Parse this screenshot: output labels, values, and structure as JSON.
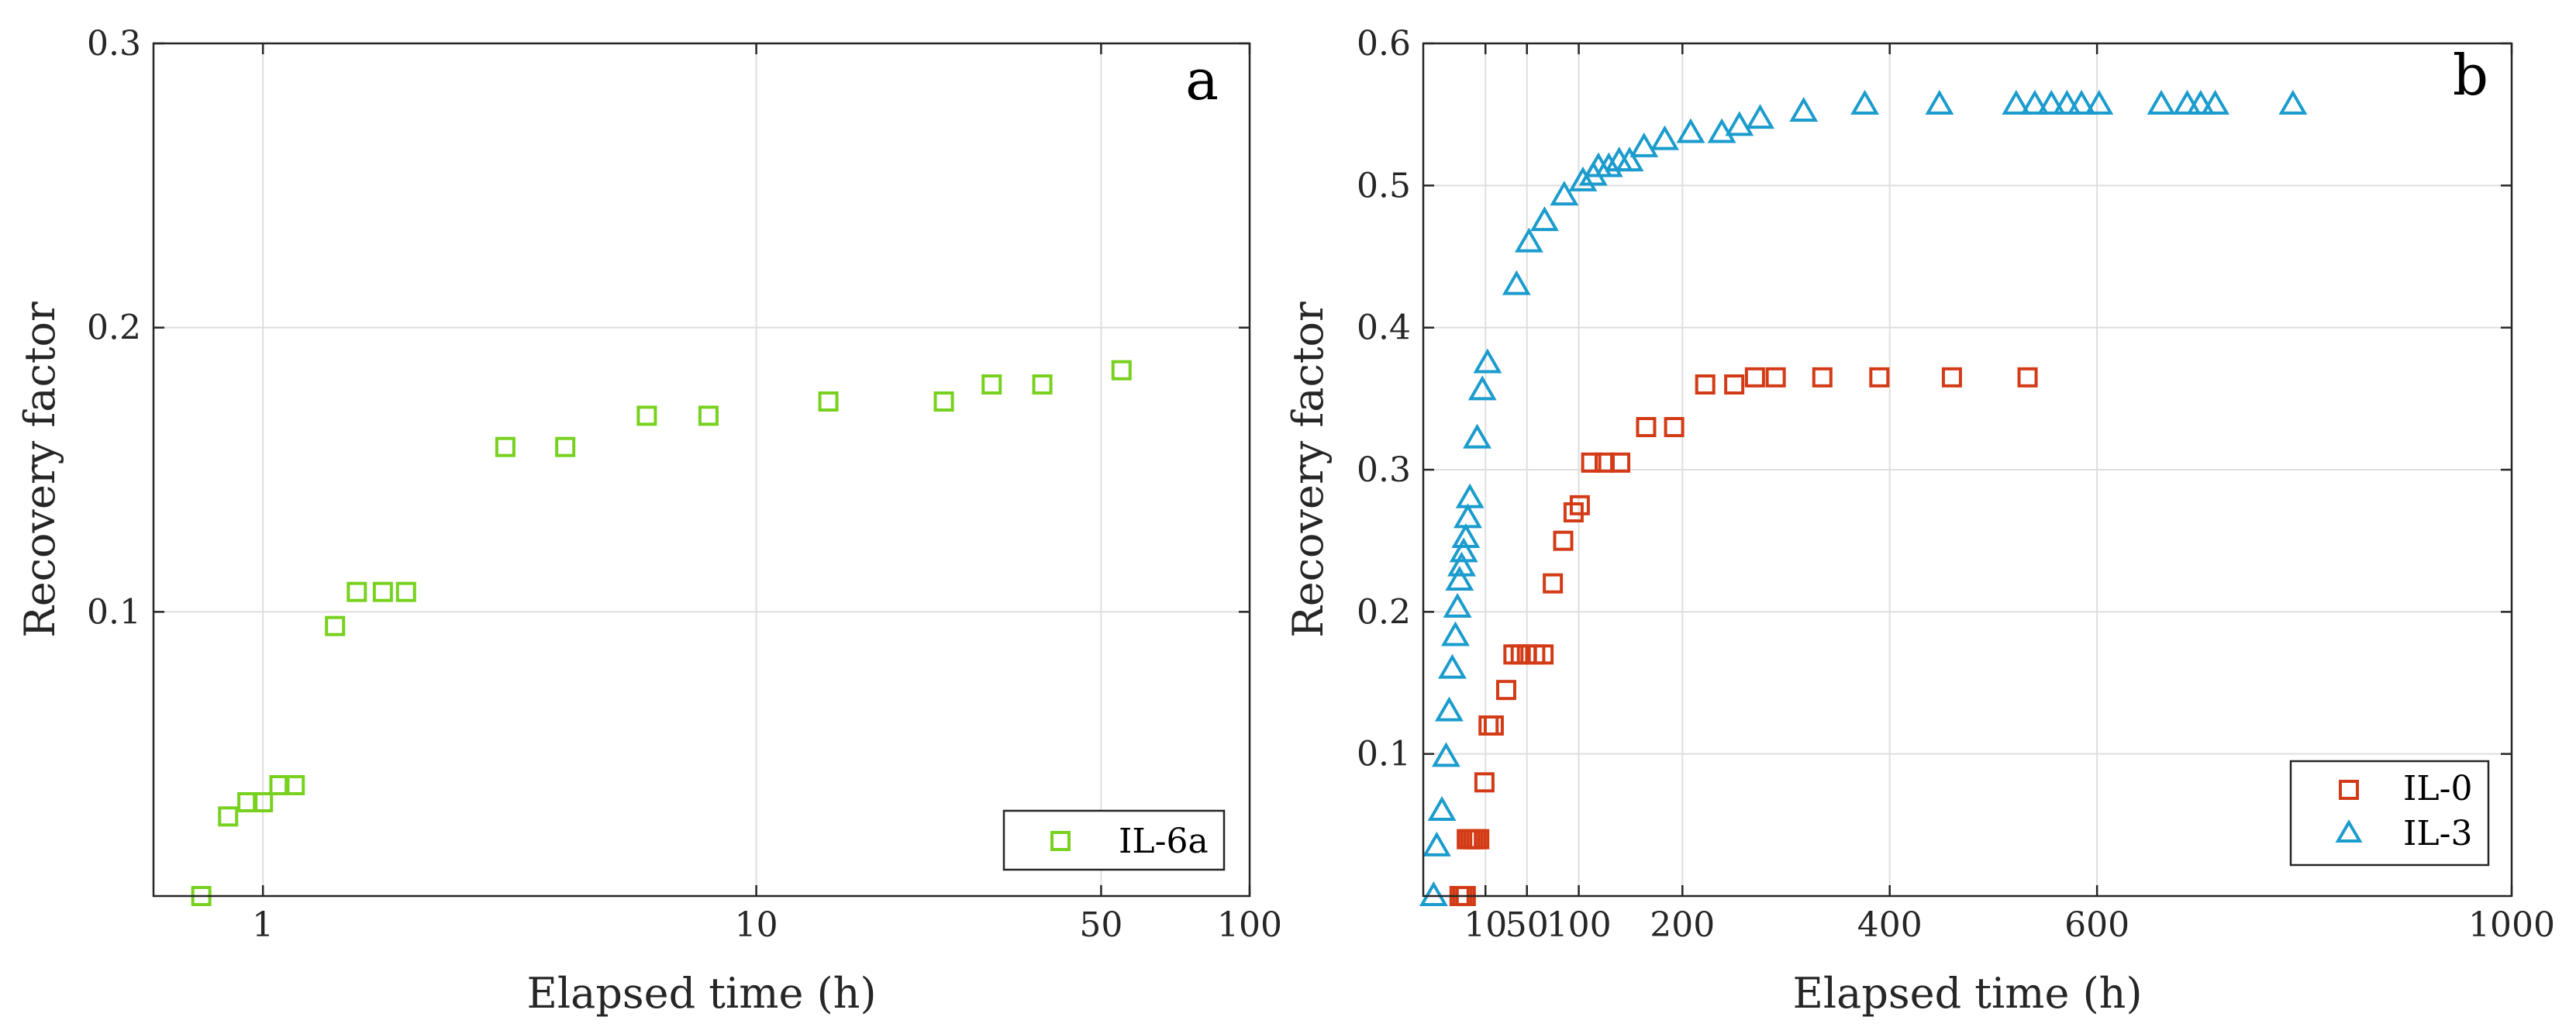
{
  "chart_data": [
    {
      "type": "scatter",
      "panel_label": "a",
      "xlabel": "Elapsed time (h)",
      "ylabel": "Recovery factor",
      "xscale": "log",
      "xlim": [
        0.6,
        100
      ],
      "ylim": [
        0,
        0.3
      ],
      "xticks": [
        1,
        10,
        50,
        100
      ],
      "xtick_labels": [
        "1",
        "10",
        "50",
        "100"
      ],
      "yticks": [
        0.1,
        0.2,
        0.3
      ],
      "ytick_labels": [
        "0.1",
        "0.2",
        "0.3"
      ],
      "grid": true,
      "legend_position": "bottom-right",
      "series": [
        {
          "name": "IL-6a",
          "marker": "square",
          "color": "#77d11e",
          "points": [
            [
              0.75,
              0.0
            ],
            [
              0.85,
              0.028
            ],
            [
              0.93,
              0.033
            ],
            [
              1.0,
              0.033
            ],
            [
              1.08,
              0.039
            ],
            [
              1.16,
              0.039
            ],
            [
              1.4,
              0.095
            ],
            [
              1.55,
              0.107
            ],
            [
              1.75,
              0.107
            ],
            [
              1.95,
              0.107
            ],
            [
              3.1,
              0.158
            ],
            [
              4.1,
              0.158
            ],
            [
              6.0,
              0.169
            ],
            [
              8.0,
              0.169
            ],
            [
              14.0,
              0.174
            ],
            [
              24.0,
              0.174
            ],
            [
              30.0,
              0.18
            ],
            [
              38.0,
              0.18
            ],
            [
              55.0,
              0.185
            ]
          ]
        }
      ]
    },
    {
      "type": "scatter",
      "panel_label": "b",
      "xlabel": "Elapsed time (h)",
      "ylabel": "Recovery factor",
      "xscale": "linear",
      "xlim": [
        -50,
        1000
      ],
      "ylim": [
        0,
        0.6
      ],
      "xticks": [
        10,
        50,
        100,
        200,
        400,
        600,
        1000
      ],
      "xtick_labels": [
        "10",
        "50",
        "100",
        "200",
        "400",
        "600",
        "1000"
      ],
      "yticks": [
        0.1,
        0.2,
        0.3,
        0.4,
        0.5,
        0.6
      ],
      "ytick_labels": [
        "0.1",
        "0.2",
        "0.3",
        "0.4",
        "0.5",
        "0.6"
      ],
      "grid": true,
      "legend_position": "bottom-right",
      "series": [
        {
          "name": "IL-0",
          "marker": "square",
          "color": "#d33b17",
          "points": [
            [
              -15,
              0.0
            ],
            [
              -12,
              0.0
            ],
            [
              -9,
              0.0
            ],
            [
              -8,
              0.04
            ],
            [
              -5,
              0.04
            ],
            [
              -2,
              0.04
            ],
            [
              1,
              0.04
            ],
            [
              4,
              0.04
            ],
            [
              9,
              0.08
            ],
            [
              13,
              0.12
            ],
            [
              18,
              0.12
            ],
            [
              30,
              0.145
            ],
            [
              37,
              0.17
            ],
            [
              44,
              0.17
            ],
            [
              50,
              0.17
            ],
            [
              58,
              0.17
            ],
            [
              66,
              0.17
            ],
            [
              75,
              0.22
            ],
            [
              85,
              0.25
            ],
            [
              95,
              0.27
            ],
            [
              101,
              0.275
            ],
            [
              112,
              0.305
            ],
            [
              125,
              0.305
            ],
            [
              140,
              0.305
            ],
            [
              165,
              0.33
            ],
            [
              192,
              0.33
            ],
            [
              222,
              0.36
            ],
            [
              250,
              0.36
            ],
            [
              270,
              0.365
            ],
            [
              290,
              0.365
            ],
            [
              335,
              0.365
            ],
            [
              390,
              0.365
            ],
            [
              460,
              0.365
            ],
            [
              533,
              0.365
            ]
          ]
        },
        {
          "name": "IL-3",
          "marker": "triangle",
          "color": "#1b9ccd",
          "points": [
            [
              -40,
              0.0
            ],
            [
              -37,
              0.035
            ],
            [
              -32,
              0.06
            ],
            [
              -28,
              0.098
            ],
            [
              -25,
              0.13
            ],
            [
              -22,
              0.16
            ],
            [
              -19,
              0.183
            ],
            [
              -17,
              0.203
            ],
            [
              -15,
              0.222
            ],
            [
              -13,
              0.232
            ],
            [
              -11,
              0.242
            ],
            [
              -9,
              0.252
            ],
            [
              -7,
              0.266
            ],
            [
              -5,
              0.28
            ],
            [
              2,
              0.322
            ],
            [
              7,
              0.356
            ],
            [
              12,
              0.375
            ],
            [
              40,
              0.43
            ],
            [
              52,
              0.46
            ],
            [
              67,
              0.475
            ],
            [
              86,
              0.493
            ],
            [
              104,
              0.503
            ],
            [
              114,
              0.507
            ],
            [
              119,
              0.513
            ],
            [
              129,
              0.513
            ],
            [
              139,
              0.517
            ],
            [
              149,
              0.517
            ],
            [
              163,
              0.527
            ],
            [
              183,
              0.532
            ],
            [
              208,
              0.537
            ],
            [
              238,
              0.537
            ],
            [
              255,
              0.542
            ],
            [
              275,
              0.547
            ],
            [
              317,
              0.552
            ],
            [
              376,
              0.557
            ],
            [
              448,
              0.557
            ],
            [
              522,
              0.557
            ],
            [
              540,
              0.557
            ],
            [
              556,
              0.557
            ],
            [
              571,
              0.557
            ],
            [
              585,
              0.557
            ],
            [
              602,
              0.557
            ],
            [
              662,
              0.557
            ],
            [
              687,
              0.557
            ],
            [
              700,
              0.557
            ],
            [
              714,
              0.557
            ],
            [
              789,
              0.557
            ]
          ]
        }
      ]
    }
  ]
}
